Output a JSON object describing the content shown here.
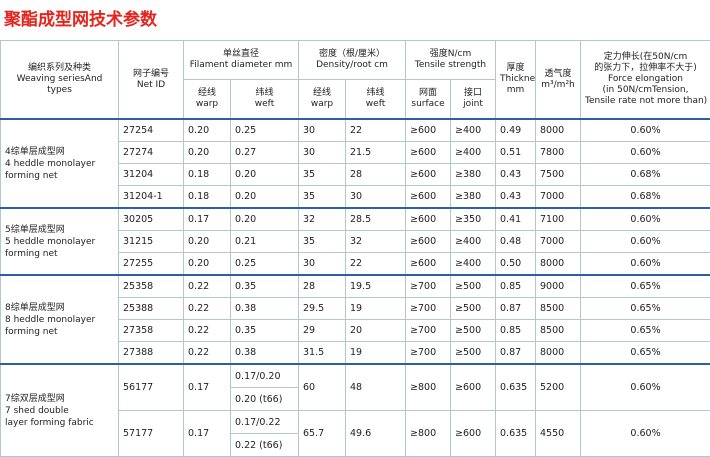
{
  "title": "聚酯成型网技术参数",
  "header": {
    "series": [
      "编织系列及种类",
      "Weaving seriesAnd",
      "types"
    ],
    "net_id": [
      "网子编号",
      "Net ID"
    ],
    "diameter": {
      "title": [
        "单丝直径",
        "Filament diameter mm"
      ],
      "warp": [
        "经线",
        "warp"
      ],
      "weft": [
        "纬线",
        "weft"
      ]
    },
    "density": {
      "title": [
        "密度（根/厘米）",
        "Density/root cm"
      ],
      "warp": [
        "经线",
        "warp"
      ],
      "weft": [
        "纬线",
        "weft"
      ]
    },
    "strength": {
      "title": [
        "强度N/cm",
        "Tensile strength"
      ],
      "surface": [
        "网面",
        "surface"
      ],
      "joint": [
        "接口",
        "joint"
      ]
    },
    "thickness": [
      "厚度",
      "Thickness",
      "mm"
    ],
    "permeability": [
      "透气度",
      "m³/m²h"
    ],
    "elongation": [
      "定力伸长(在50N/cm",
      "的张力下，拉伸率不大于)",
      "Force elongation",
      "(in 50N/cmTension,",
      "Tensile rate not more than)"
    ]
  },
  "groups": [
    {
      "label": [
        "4综单层成型网",
        "4 heddle monolayer",
        "forming net"
      ],
      "rows": [
        [
          "27254",
          "0.20",
          "0.25",
          "30",
          "22",
          "≥600",
          "≥400",
          "0.49",
          "8000",
          "0.60%"
        ],
        [
          "27274",
          "0.20",
          "0.27",
          "30",
          "21.5",
          "≥600",
          "≥400",
          "0.51",
          "7800",
          "0.60%"
        ],
        [
          "31204",
          "0.18",
          "0.20",
          "35",
          "28",
          "≥600",
          "≥380",
          "0.43",
          "7500",
          "0.68%"
        ],
        [
          "31204-1",
          "0.18",
          "0.20",
          "35",
          "30",
          "≥600",
          "≥380",
          "0.43",
          "7000",
          "0.68%"
        ]
      ]
    },
    {
      "label": [
        "5综单层成型网",
        "5 heddle monolayer",
        "forming net"
      ],
      "rows": [
        [
          "30205",
          "0.17",
          "0.20",
          "32",
          "28.5",
          "≥600",
          "≥350",
          "0.41",
          "7100",
          "0.60%"
        ],
        [
          "31215",
          "0.20",
          "0.21",
          "35",
          "32",
          "≥600",
          "≥400",
          "0.48",
          "7000",
          "0.60%"
        ],
        [
          "27255",
          "0.20",
          "0.25",
          "30",
          "22",
          "≥600",
          "≥400",
          "0.50",
          "8000",
          "0.60%"
        ]
      ]
    },
    {
      "label": [
        "8综单层成型网",
        "8 heddle monolayer",
        "forming net"
      ],
      "rows": [
        [
          "25358",
          "0.22",
          "0.35",
          "28",
          "19.5",
          "≥700",
          "≥500",
          "0.85",
          "9000",
          "0.65%"
        ],
        [
          "25388",
          "0.22",
          "0.38",
          "29.5",
          "19",
          "≥700",
          "≥500",
          "0.87",
          "8500",
          "0.65%"
        ],
        [
          "27358",
          "0.22",
          "0.35",
          "29",
          "20",
          "≥700",
          "≥500",
          "0.85",
          "8500",
          "0.65%"
        ],
        [
          "27388",
          "0.22",
          "0.38",
          "31.5",
          "19",
          "≥700",
          "≥500",
          "0.87",
          "8000",
          "0.65%"
        ]
      ]
    },
    {
      "label": [
        "7综双层成型网",
        "7 shed double",
        "layer forming fabric"
      ],
      "rows": [
        [
          "56177",
          "0.17",
          [
            "0.17/0.20",
            "0.20 (t66)"
          ],
          "60",
          "48",
          "≥800",
          "≥600",
          "0.635",
          "5200",
          "0.60%"
        ],
        [
          "57177",
          "0.17",
          [
            "0.17/0.22",
            "0.22 (t66)"
          ],
          "65.7",
          "49.6",
          "≥800",
          "≥600",
          "0.635",
          "4550",
          "0.60%"
        ]
      ]
    }
  ]
}
